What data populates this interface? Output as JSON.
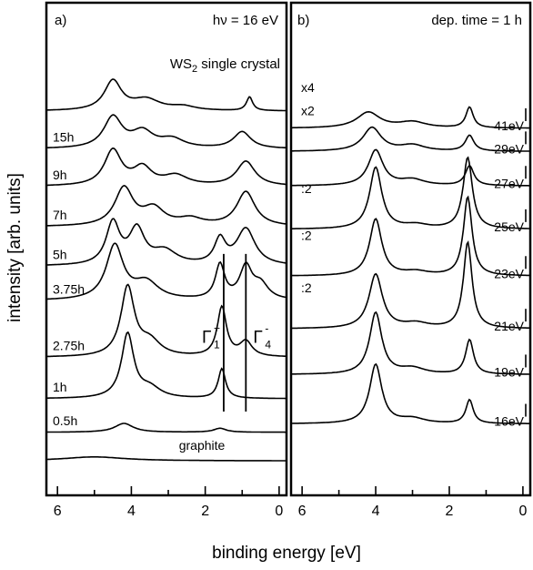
{
  "figure": {
    "ylabel": "intensity [arb. units]",
    "xlabel": "binding energy [eV]"
  },
  "chart_data": [
    {
      "type": "line",
      "panel_label": "a)",
      "corner_label": "hν = 16 eV",
      "xlim": [
        6.3,
        -0.2
      ],
      "x_ticks": [
        6,
        4,
        2,
        0
      ],
      "x_tick_labels": [
        "6",
        "4",
        "2",
        "0"
      ],
      "y_ticks": "none",
      "grid": false,
      "series": [
        {
          "name": "WS2 single crystal",
          "label_main": "WS",
          "label_sub": "2",
          "label_rest": " single crystal",
          "baseline": 0.78,
          "peaks": [
            [
              4.5,
              0.06,
              0.28
            ],
            [
              3.6,
              0.022,
              0.45
            ],
            [
              2.6,
              0.008,
              0.4
            ],
            [
              0.8,
              0.028,
              0.1
            ]
          ]
        },
        {
          "name": "15h",
          "baseline": 0.703,
          "peaks": [
            [
              4.5,
              0.063,
              0.3
            ],
            [
              3.7,
              0.032,
              0.35
            ],
            [
              2.9,
              0.018,
              0.4
            ],
            [
              1.0,
              0.034,
              0.28
            ]
          ]
        },
        {
          "name": "9h",
          "baseline": 0.627,
          "peaks": [
            [
              4.5,
              0.072,
              0.28
            ],
            [
              3.7,
              0.035,
              0.3
            ],
            [
              2.8,
              0.02,
              0.4
            ],
            [
              0.9,
              0.05,
              0.3
            ]
          ]
        },
        {
          "name": "7h",
          "baseline": 0.545,
          "peaks": [
            [
              4.2,
              0.077,
              0.3
            ],
            [
              3.4,
              0.034,
              0.35
            ],
            [
              2.4,
              0.014,
              0.4
            ],
            [
              0.9,
              0.07,
              0.3
            ]
          ]
        },
        {
          "name": "5h",
          "baseline": 0.465,
          "peaks": [
            [
              4.5,
              0.085,
              0.22
            ],
            [
              3.85,
              0.07,
              0.25
            ],
            [
              3.1,
              0.028,
              0.4
            ],
            [
              1.6,
              0.05,
              0.18
            ],
            [
              0.9,
              0.074,
              0.3
            ]
          ]
        },
        {
          "name": "3.75h",
          "baseline": 0.395,
          "peaks": [
            [
              4.45,
              0.11,
              0.28
            ],
            [
              3.6,
              0.035,
              0.4
            ],
            [
              1.6,
              0.07,
              0.15
            ],
            [
              0.9,
              0.065,
              0.2
            ],
            [
              0.5,
              0.03,
              0.25
            ]
          ]
        },
        {
          "name": "2.75h",
          "baseline": 0.28,
          "peaks": [
            [
              4.1,
              0.14,
              0.22
            ],
            [
              3.5,
              0.03,
              0.35
            ],
            [
              1.55,
              0.1,
              0.15
            ],
            [
              0.9,
              0.03,
              0.2
            ]
          ]
        },
        {
          "name": "1h",
          "baseline": 0.196,
          "peaks": [
            [
              4.1,
              0.13,
              0.2
            ],
            [
              3.5,
              0.02,
              0.35
            ],
            [
              1.55,
              0.06,
              0.12
            ]
          ]
        },
        {
          "name": "0.5h",
          "baseline": 0.128,
          "peaks": [
            [
              4.2,
              0.018,
              0.3
            ],
            [
              1.6,
              0.008,
              0.2
            ]
          ]
        },
        {
          "name": "graphite",
          "baseline": 0.07,
          "peaks": [
            [
              5.0,
              0.008,
              1.0
            ]
          ]
        }
      ],
      "markers": {
        "lines_at_x": [
          1.5,
          0.9
        ],
        "labels": [
          "Γ",
          "Γ"
        ],
        "label_sup": [
          "+",
          "-"
        ],
        "label_sub": [
          "1",
          "4"
        ]
      }
    },
    {
      "type": "line",
      "panel_label": "b)",
      "corner_label": "dep. time = 1 h",
      "xlim": [
        6.3,
        -0.2
      ],
      "x_ticks": [
        6,
        4,
        2,
        0
      ],
      "x_tick_labels": [
        "6",
        "4",
        "2",
        "0"
      ],
      "y_ticks": "none",
      "grid": false,
      "series": [
        {
          "name": "41eV",
          "scale": "x4",
          "baseline": 0.745,
          "peaks": [
            [
              4.2,
              0.032,
              0.38
            ],
            [
              3.0,
              0.012,
              0.45
            ],
            [
              1.45,
              0.042,
              0.12
            ]
          ]
        },
        {
          "name": "29eV",
          "scale": "x2",
          "baseline": 0.698,
          "peaks": [
            [
              4.1,
              0.048,
              0.3
            ],
            [
              3.0,
              0.012,
              0.4
            ],
            [
              1.45,
              0.032,
              0.14
            ]
          ]
        },
        {
          "name": "27eV",
          "baseline": 0.628,
          "peaks": [
            [
              4.0,
              0.072,
              0.24
            ],
            [
              3.0,
              0.012,
              0.4
            ],
            [
              1.45,
              0.04,
              0.14
            ]
          ]
        },
        {
          "name": "25eV",
          "scale": ":2",
          "baseline": 0.54,
          "peaks": [
            [
              4.0,
              0.125,
              0.2
            ],
            [
              2.9,
              0.008,
              0.4
            ],
            [
              1.5,
              0.145,
              0.15
            ]
          ]
        },
        {
          "name": "23eV",
          "scale": ":2",
          "baseline": 0.445,
          "peaks": [
            [
              4.0,
              0.115,
              0.2
            ],
            [
              2.9,
              0.008,
              0.4
            ],
            [
              1.5,
              0.16,
              0.14
            ]
          ]
        },
        {
          "name": "21eV",
          "scale": ":2",
          "baseline": 0.338,
          "peaks": [
            [
              4.0,
              0.11,
              0.22
            ],
            [
              2.9,
              0.01,
              0.4
            ],
            [
              1.5,
              0.175,
              0.14
            ]
          ]
        },
        {
          "name": "19eV",
          "baseline": 0.245,
          "peaks": [
            [
              4.0,
              0.125,
              0.2
            ],
            [
              3.0,
              0.012,
              0.4
            ],
            [
              1.45,
              0.07,
              0.13
            ]
          ]
        },
        {
          "name": "16eV",
          "baseline": 0.145,
          "peaks": [
            [
              4.0,
              0.12,
              0.2
            ],
            [
              3.0,
              0.01,
              0.4
            ],
            [
              1.45,
              0.048,
              0.12
            ]
          ]
        }
      ]
    }
  ]
}
